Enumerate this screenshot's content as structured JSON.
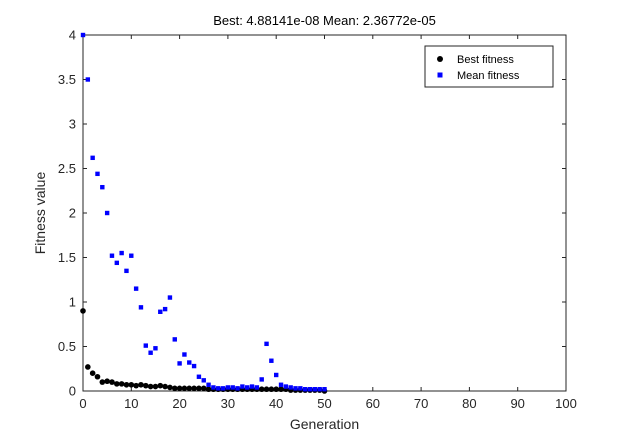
{
  "chart_data": {
    "type": "scatter",
    "title": "Best: 4.88141e-08  Mean: 2.36772e-05",
    "xlabel": "Generation",
    "ylabel": "Fitness value",
    "xlim": [
      0,
      100
    ],
    "ylim": [
      0,
      4
    ],
    "xticks": [
      0,
      10,
      20,
      30,
      40,
      50,
      60,
      70,
      80,
      90,
      100
    ],
    "yticks": [
      0,
      0.5,
      1,
      1.5,
      2,
      2.5,
      3,
      3.5,
      4
    ],
    "yticklabels": [
      "0",
      "0.5",
      "1",
      "1.5",
      "2",
      "2.5",
      "3",
      "3.5",
      "4"
    ],
    "legend_position": "top-right",
    "grid": false,
    "series": [
      {
        "name": "Best fitness",
        "marker": "circle",
        "color": "#000000",
        "x": [
          0,
          1,
          2,
          3,
          4,
          5,
          6,
          7,
          8,
          9,
          10,
          11,
          12,
          13,
          14,
          15,
          16,
          17,
          18,
          19,
          20,
          21,
          22,
          23,
          24,
          25,
          26,
          27,
          28,
          29,
          30,
          31,
          32,
          33,
          34,
          35,
          36,
          37,
          38,
          39,
          40,
          41,
          42,
          43,
          44,
          45,
          46,
          47,
          48,
          49,
          50
        ],
        "y": [
          0.9,
          0.27,
          0.2,
          0.16,
          0.1,
          0.11,
          0.1,
          0.08,
          0.08,
          0.07,
          0.07,
          0.06,
          0.07,
          0.06,
          0.05,
          0.05,
          0.06,
          0.05,
          0.04,
          0.03,
          0.03,
          0.03,
          0.03,
          0.03,
          0.03,
          0.03,
          0.02,
          0.02,
          0.02,
          0.02,
          0.02,
          0.02,
          0.02,
          0.02,
          0.02,
          0.02,
          0.02,
          0.02,
          0.02,
          0.02,
          0.02,
          0.02,
          0.02,
          0.01,
          0.01,
          0.01,
          0.01,
          0.01,
          0.01,
          0.01,
          0.0
        ]
      },
      {
        "name": "Mean fitness",
        "marker": "square",
        "color": "#0000ff",
        "x": [
          0,
          1,
          2,
          3,
          4,
          5,
          6,
          7,
          8,
          9,
          10,
          11,
          12,
          13,
          14,
          15,
          16,
          17,
          18,
          19,
          20,
          21,
          22,
          23,
          24,
          25,
          26,
          27,
          28,
          29,
          30,
          31,
          32,
          33,
          34,
          35,
          36,
          37,
          38,
          39,
          40,
          41,
          42,
          43,
          44,
          45,
          46,
          47,
          48,
          49,
          50
        ],
        "y": [
          4.0,
          3.5,
          2.62,
          2.44,
          2.29,
          2.0,
          1.52,
          1.44,
          1.55,
          1.35,
          1.52,
          1.15,
          0.94,
          0.51,
          0.43,
          0.48,
          0.89,
          0.92,
          1.05,
          0.58,
          0.31,
          0.41,
          0.32,
          0.28,
          0.16,
          0.12,
          0.07,
          0.04,
          0.03,
          0.03,
          0.04,
          0.04,
          0.03,
          0.05,
          0.04,
          0.05,
          0.04,
          0.13,
          0.53,
          0.34,
          0.18,
          0.07,
          0.05,
          0.04,
          0.03,
          0.03,
          0.02,
          0.02,
          0.02,
          0.02,
          0.02
        ]
      }
    ]
  }
}
